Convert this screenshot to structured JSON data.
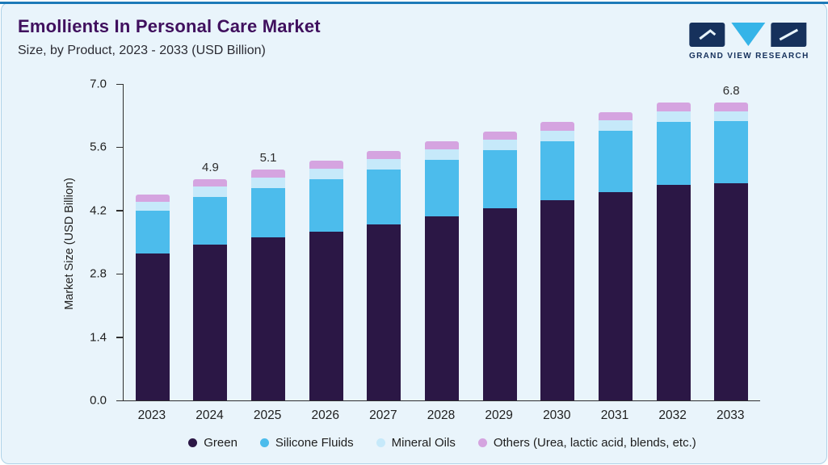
{
  "header": {
    "title": "Emollients In Personal Care Market",
    "subtitle": "Size, by Product, 2023 - 2033 (USD Billion)",
    "brand": "GRAND VIEW RESEARCH"
  },
  "colors": {
    "accent_line": "#1d7ab8",
    "card_background": "#e9f4fb",
    "title_text": "#40105e",
    "logo_navy": "#16315c",
    "logo_cyan": "#35b4e8"
  },
  "chart_data": {
    "type": "bar",
    "stacked": true,
    "ylabel": "Market Size (USD Billion)",
    "ylim": [
      0,
      7.0
    ],
    "yticks": [
      0.0,
      1.4,
      2.8,
      4.2,
      5.6,
      7.0
    ],
    "grid": false,
    "legend_position": "bottom",
    "categories": [
      "2023",
      "2024",
      "2025",
      "2026",
      "2027",
      "2028",
      "2029",
      "2030",
      "2031",
      "2032",
      "2033"
    ],
    "series": [
      {
        "name": "Green",
        "color": "#2b1745",
        "values": [
          3.25,
          3.45,
          3.6,
          3.73,
          3.9,
          4.08,
          4.25,
          4.42,
          4.6,
          4.77,
          4.95
        ]
      },
      {
        "name": "Silicone Fluids",
        "color": "#4cbcec",
        "values": [
          0.95,
          1.05,
          1.1,
          1.16,
          1.2,
          1.24,
          1.28,
          1.32,
          1.36,
          1.4,
          1.42
        ]
      },
      {
        "name": "Mineral Oils",
        "color": "#c6e9fa",
        "values": [
          0.2,
          0.23,
          0.23,
          0.24,
          0.24,
          0.24,
          0.24,
          0.23,
          0.23,
          0.23,
          0.23
        ]
      },
      {
        "name": "Others (Urea, lactic acid, blends, etc.)",
        "color": "#d5a4e0",
        "values": [
          0.15,
          0.17,
          0.17,
          0.18,
          0.18,
          0.18,
          0.18,
          0.19,
          0.19,
          0.19,
          0.2
        ]
      }
    ],
    "totals": [
      4.55,
      4.9,
      5.1,
      5.31,
      5.52,
      5.74,
      5.95,
      6.16,
      6.38,
      6.59,
      6.8
    ],
    "value_labels": {
      "2024": "4.9",
      "2025": "5.1",
      "2033": "6.8"
    }
  }
}
